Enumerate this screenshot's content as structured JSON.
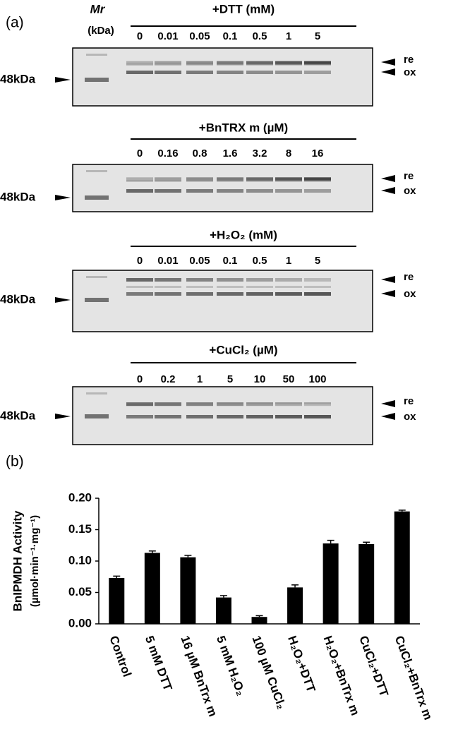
{
  "panel_a": {
    "label": "(a)",
    "marker_name": "Mr",
    "marker_unit": "(kDa)",
    "gels": [
      {
        "title": "+DTT (mM)",
        "lanes": [
          "0",
          "0.01",
          "0.05",
          "0.1",
          "0.5",
          "1",
          "5"
        ],
        "marker_label": "48kDa",
        "re": "re",
        "ox": "ox"
      },
      {
        "title": "+BnTRX m (µM)",
        "lanes": [
          "0",
          "0.16",
          "0.8",
          "1.6",
          "3.2",
          "8",
          "16"
        ],
        "marker_label": "48kDa",
        "re": "re",
        "ox": "ox"
      },
      {
        "title": "+H₂O₂ (mM)",
        "lanes": [
          "0",
          "0.01",
          "0.05",
          "0.1",
          "0.5",
          "1",
          "5"
        ],
        "marker_label": "48kDa",
        "re": "re",
        "ox": "ox"
      },
      {
        "title": "+CuCl₂ (µM)",
        "lanes": [
          "0",
          "0.2",
          "1",
          "5",
          "10",
          "50",
          "100"
        ],
        "marker_label": "48kDa",
        "re": "re",
        "ox": "ox"
      }
    ]
  },
  "panel_b": {
    "label": "(b)"
  },
  "chart_data": {
    "type": "bar",
    "ylabel": [
      "BnIPMDH Activity",
      "(µmol·min⁻¹·mg⁻¹)"
    ],
    "categories": [
      "Control",
      "5 mM DTT",
      "16 µM BnTrx m",
      "5 mM H₂O₂",
      "100 µM CuCl₂",
      "H₂O₂+DTT",
      "H₂O₂+BnTrx m",
      "CuCl₂+DTT",
      "CuCl₂+BnTrx m"
    ],
    "values": [
      0.073,
      0.113,
      0.106,
      0.042,
      0.011,
      0.058,
      0.128,
      0.127,
      0.179
    ],
    "errors": [
      0.003,
      0.003,
      0.003,
      0.003,
      0.002,
      0.004,
      0.005,
      0.003,
      0.002
    ],
    "color": "#000000",
    "ylim": [
      0,
      0.2
    ],
    "yticks": [
      {
        "value": 0,
        "label": "0.00"
      },
      {
        "value": 0.05,
        "label": "0.05"
      },
      {
        "value": 0.1,
        "label": "0.10"
      },
      {
        "value": 0.15,
        "label": "0.15"
      },
      {
        "value": 0.2,
        "label": "0.20"
      }
    ]
  }
}
